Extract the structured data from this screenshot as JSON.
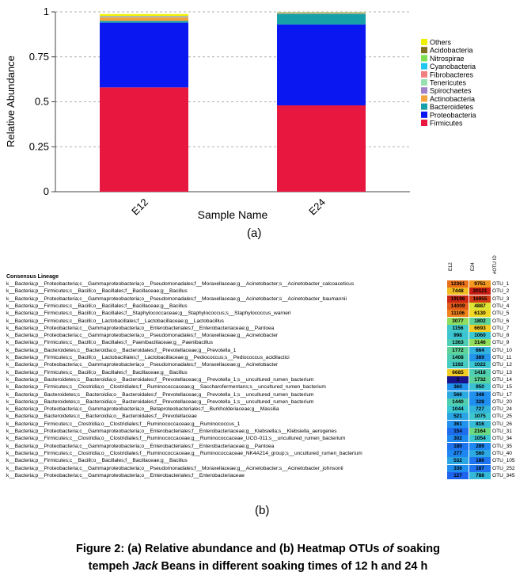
{
  "chart_data": [
    {
      "type": "bar",
      "stacked": true,
      "categories": [
        "E12",
        "E24"
      ],
      "xlabel": "Sample Name",
      "ylabel": "Relative Abundance",
      "ylim": [
        0,
        1
      ],
      "yticks": [
        "0",
        "0.25",
        "0.5",
        "0.75",
        "1"
      ],
      "grid": "dashed horizontal",
      "legend_placement": "right",
      "series": [
        {
          "name": "Firmicutes",
          "color": "#e8173f",
          "values": [
            0.58,
            0.48
          ]
        },
        {
          "name": "Proteobacteria",
          "color": "#0b17f0",
          "values": [
            0.36,
            0.45
          ]
        },
        {
          "name": "Bacteroidetes",
          "color": "#17a0a8",
          "values": [
            0.01,
            0.06
          ]
        },
        {
          "name": "Actinobacteria",
          "color": "#f4a43c",
          "values": [
            0.02,
            0.003
          ]
        },
        {
          "name": "Spirochaetes",
          "color": "#a080c8",
          "values": [
            0.002,
            0.001
          ]
        },
        {
          "name": "Tenericutes",
          "color": "#98e0b0",
          "values": [
            0.002,
            0.001
          ]
        },
        {
          "name": "Fibrobacteres",
          "color": "#f08080",
          "values": [
            0.001,
            0.001
          ]
        },
        {
          "name": "Cyanobacteria",
          "color": "#20c8f0",
          "values": [
            0.001,
            0.001
          ]
        },
        {
          "name": "Nitrospirae",
          "color": "#7ee050",
          "values": [
            0.001,
            0.001
          ]
        },
        {
          "name": "Acidobacteria",
          "color": "#807020",
          "values": [
            0.001,
            0.001
          ]
        },
        {
          "name": "Others",
          "color": "#f0f000",
          "values": [
            0.01,
            0.003
          ]
        }
      ]
    },
    {
      "type": "heatmap",
      "columns": [
        "E12",
        "E24"
      ],
      "id_header": "#OTU ID",
      "row_header": "Consensus Lineage",
      "rows": [
        {
          "lineage": "k__Bacteria;p__Proteobacteria;c__Gammaproteobacteria;o__Pseudomonadales;f__Moraxellaceae;g__Acinetobacter;s__Acinetobacter_calcoaceticus",
          "id": "OTU_1",
          "values": [
            12361,
            9751
          ]
        },
        {
          "lineage": "k__Bacteria;p__Firmicutes;c__Bacilli;o__Bacillales;f__Bacillaceae;g__Bacillus",
          "id": "OTU_2",
          "values": [
            7448,
            20121
          ]
        },
        {
          "lineage": "k__Bacteria;p__Proteobacteria;c__Gammaproteobacteria;o__Pseudomonadales;f__Moraxellaceae;g__Acinetobacter;s__Acinetobacter_baumannii",
          "id": "OTU_3",
          "values": [
            19196,
            16955
          ]
        },
        {
          "lineage": "k__Bacteria;p__Firmicutes;c__Bacilli;o__Bacillales;f__Bacillaceae;g__Bacillus",
          "id": "OTU_4",
          "values": [
            14009,
            4887
          ]
        },
        {
          "lineage": "k__Bacteria;p__Firmicutes;c__Bacilli;o__Bacillales;f__Staphylococcaceae;g__Staphylococcus;s__Staphylococcus_warneri",
          "id": "OTU_5",
          "values": [
            11106,
            6130
          ]
        },
        {
          "lineage": "k__Bacteria;p__Firmicutes;c__Bacilli;o__Lactobacillales;f__Lactobacillaceae;g__Lactobacillus",
          "id": "OTU_6",
          "values": [
            3077,
            1802
          ]
        },
        {
          "lineage": "k__Bacteria;p__Proteobacteria;c__Gammaproteobacteria;o__Enterobacteriales;f__Enterobacteriaceae;g__Pantoea",
          "id": "OTU_7",
          "values": [
            1156,
            6693
          ]
        },
        {
          "lineage": "k__Bacteria;p__Proteobacteria;c__Gammaproteobacteria;o__Pseudomonadales;f__Moraxellaceae;g__Acinetobacter",
          "id": "OTU_8",
          "values": [
            998,
            1060
          ]
        },
        {
          "lineage": "k__Bacteria;p__Firmicutes;c__Bacilli;o__Bacillales;f__Paenibacillaceae;g__Paenibacillus",
          "id": "OTU_9",
          "values": [
            1363,
            3146
          ]
        },
        {
          "lineage": "k__Bacteria;p__Bacteroidetes;c__Bacteroidia;o__Bacteroidales;f__Prevotellaceae;g__Prevotella_1",
          "id": "OTU_10",
          "values": [
            1772,
            664
          ]
        },
        {
          "lineage": "k__Bacteria;p__Firmicutes;c__Bacilli;o__Lactobacillales;f__Lactobacillaceae;g__Pediococcus;s__Pediococcus_acidilactici",
          "id": "OTU_11",
          "values": [
            1408,
            389
          ]
        },
        {
          "lineage": "k__Bacteria;p__Proteobacteria;c__Gammaproteobacteria;o__Pseudomonadales;f__Moraxellaceae;g__Acinetobacter",
          "id": "OTU_12",
          "values": [
            1192,
            1022
          ]
        },
        {
          "lineage": "k__Bacteria;p__Firmicutes;c__Bacilli;o__Bacillales;f__Bacillaceae;g__Bacillus",
          "id": "OTU_13",
          "values": [
            6685,
            1418
          ]
        },
        {
          "lineage": "k__Bacteria;p__Bacteroidetes;c__Bacteroidia;o__Bacteroidales;f__Prevotellaceae;g__Prevotella_1;s__uncultured_rumen_bacterium",
          "id": "OTU_14",
          "values": [
            2,
            1732
          ]
        },
        {
          "lineage": "k__Bacteria;p__Firmicutes;c__Clostridia;o__Clostridiales;f__Ruminococcaceae;g__Saccharofermentans;s__uncultured_rumen_bacterium",
          "id": "OTU_15",
          "values": [
            360,
            950
          ]
        },
        {
          "lineage": "k__Bacteria;p__Bacteroidetes;c__Bacteroidia;o__Bacteroidales;f__Prevotellaceae;g__Prevotella_1;s__uncultured_rumen_bacterium",
          "id": "OTU_17",
          "values": [
            566,
            348
          ]
        },
        {
          "lineage": "k__Bacteria;p__Bacteroidetes;c__Bacteroidia;o__Bacteroidales;f__Prevotellaceae;g__Prevotella_1;s__uncultured_rumen_bacterium",
          "id": "OTU_20",
          "values": [
            1440,
            328
          ]
        },
        {
          "lineage": "k__Bacteria;p__Proteobacteria;c__Gammaproteobacteria;o__Betaproteobacteriales;f__Burkholderiaceae;g__Massilia",
          "id": "OTU_24",
          "values": [
            1044,
            727
          ]
        },
        {
          "lineage": "k__Bacteria;p__Bacteroidetes;c__Bacteroidia;o__Bacteroidales;f__Prevotellaceae",
          "id": "OTU_25",
          "values": [
            521,
            1075
          ]
        },
        {
          "lineage": "k__Bacteria;p__Firmicutes;c__Clostridia;o__Clostridiales;f__Ruminococcaceae;g__Ruminococcus_1",
          "id": "OTU_26",
          "values": [
            361,
            816
          ]
        },
        {
          "lineage": "k__Bacteria;p__Proteobacteria;c__Gammaproteobacteria;o__Enterobacteriales;f__Enterobacteriaceae;g__Klebsiella;s__Klebsiella_aerogenes",
          "id": "OTU_31",
          "values": [
            154,
            2164
          ]
        },
        {
          "lineage": "k__Bacteria;p__Firmicutes;c__Clostridia;o__Clostridiales;f__Ruminococcaceae;g__Ruminococcaceae_UCG-011;s__uncultured_rumen_bacterium",
          "id": "OTU_34",
          "values": [
            302,
            1054
          ]
        },
        {
          "lineage": "k__Bacteria;p__Proteobacteria;c__Gammaproteobacteria;o__Enterobacteriales;f__Enterobacteriaceae;g__Pantoea",
          "id": "OTU_35",
          "values": [
            180,
            289
          ]
        },
        {
          "lineage": "k__Bacteria;p__Firmicutes;c__Clostridia;o__Clostridiales;f__Ruminococcaceae;g__Ruminococcaceae_NK4A214_group;s__uncultured_rumen_bacterium",
          "id": "OTU_40",
          "values": [
            277,
            560
          ]
        },
        {
          "lineage": "k__Bacteria;p__Firmicutes;c__Bacilli;o__Bacillales;f__Bacillaceae;g__Bacillus",
          "id": "OTU_105",
          "values": [
            532,
            186
          ]
        },
        {
          "lineage": "k__Bacteria;p__Proteobacteria;c__Gammaproteobacteria;o__Pseudomonadales;f__Moraxellaceae;g__Acinetobacter;s__Acinetobacter_johnsonii",
          "id": "OTU_252",
          "values": [
            336,
            187
          ]
        },
        {
          "lineage": "k__Bacteria;p__Proteobacteria;c__Gammaproteobacteria;o__Enterobacteriales;f__Enterobacteriaceae",
          "id": "OTU_345",
          "values": [
            127,
            788
          ]
        }
      ]
    }
  ],
  "labels": {
    "panel_a": "(a)",
    "panel_b": "(b)"
  },
  "caption": {
    "line1": "Figure 2: (a) Relative abundance and (b) Heatmap OTUs of soaking",
    "line2": "tempeh Jack Beans in different soaking times of 12 h and 24 h"
  }
}
